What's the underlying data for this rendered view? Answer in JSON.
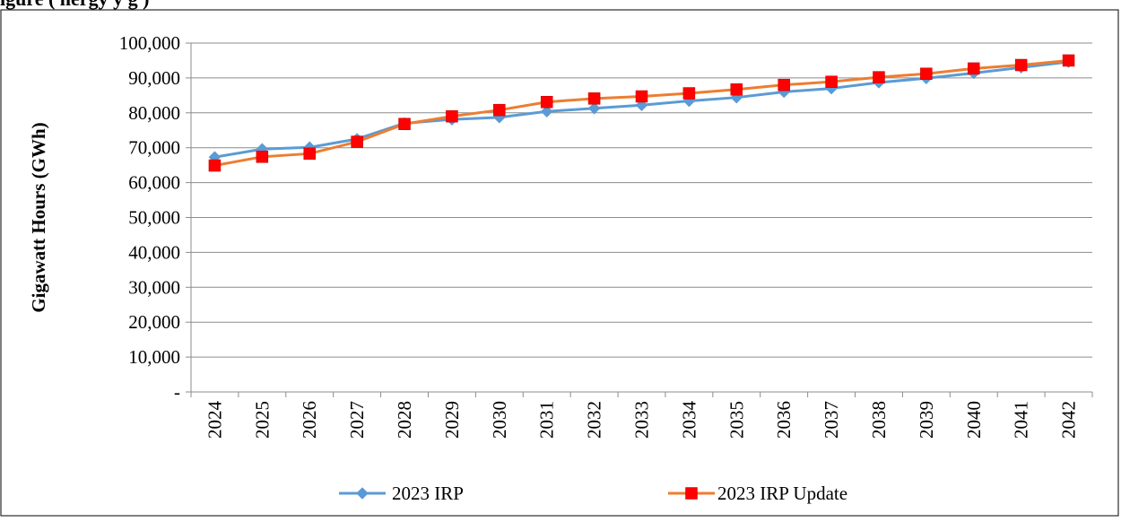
{
  "page": {
    "title_fragment": "igure                                         (                                                  nergy              y             g )"
  },
  "chart_data": {
    "type": "line",
    "title": "",
    "xlabel": "",
    "ylabel": "Gigawatt Hours (GWh)",
    "ylim": [
      0,
      100000
    ],
    "yticks": [
      0,
      10000,
      20000,
      30000,
      40000,
      50000,
      60000,
      70000,
      80000,
      90000,
      100000
    ],
    "ytick_labels": [
      "-",
      "10,000",
      "20,000",
      "30,000",
      "40,000",
      "50,000",
      "60,000",
      "70,000",
      "80,000",
      "90,000",
      "100,000"
    ],
    "categories": [
      "2024",
      "2025",
      "2026",
      "2027",
      "2028",
      "2029",
      "2030",
      "2031",
      "2032",
      "2033",
      "2034",
      "2035",
      "2036",
      "2037",
      "2038",
      "2039",
      "2040",
      "2041",
      "2042"
    ],
    "grid": "horizontal",
    "legend_position": "bottom",
    "series": [
      {
        "name": "2023 IRP",
        "color": "#5B9BD5",
        "marker": "diamond",
        "values": [
          67300,
          69600,
          70100,
          72500,
          77000,
          78100,
          78700,
          80400,
          81300,
          82200,
          83400,
          84400,
          86000,
          87000,
          88700,
          89900,
          91400,
          93000,
          94600
        ]
      },
      {
        "name": "2023 IRP Update",
        "color": "#ED7D31",
        "marker": "square",
        "marker_color": "#FF0000",
        "values": [
          64900,
          67400,
          68300,
          71700,
          76800,
          79000,
          80800,
          83100,
          84100,
          84700,
          85600,
          86700,
          88000,
          88900,
          90200,
          91200,
          92700,
          93700,
          95000
        ]
      }
    ]
  }
}
